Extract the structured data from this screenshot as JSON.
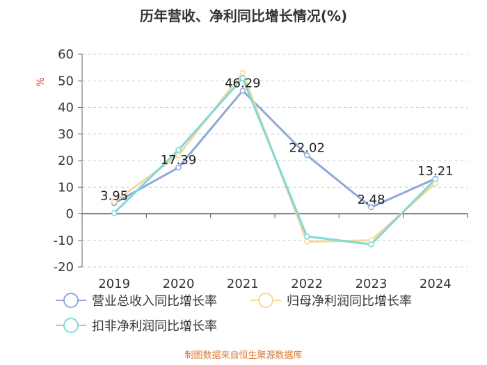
{
  "chart_data": {
    "type": "line",
    "title": "历年营收、净利同比增长情况(%)",
    "ylabel": "%",
    "ylim": [
      -20,
      60
    ],
    "yticks": [
      60,
      50,
      40,
      30,
      20,
      10,
      0,
      -10,
      -20
    ],
    "grid": true,
    "legend_position": "bottom",
    "categories": [
      "2019",
      "2020",
      "2021",
      "2022",
      "2023",
      "2024"
    ],
    "series": [
      {
        "name": "营业总收入同比增长率",
        "color": "#8fa8d8",
        "values": [
          3.95,
          17.39,
          46.29,
          22.02,
          2.48,
          13.21
        ],
        "labeled": true
      },
      {
        "name": "归母净利润同比增长率",
        "color": "#f7d79a",
        "values": [
          4.5,
          22.0,
          53.0,
          -10.5,
          -10.0,
          11.5
        ],
        "labeled": false
      },
      {
        "name": "扣非净利润同比增长率",
        "color": "#7fd8d8",
        "values": [
          0.3,
          24.0,
          51.0,
          -8.5,
          -11.5,
          13.0
        ],
        "labeled": false
      }
    ],
    "data_labels": [
      "3.95",
      "17.39",
      "46.29",
      "22.02",
      "2.48",
      "13.21"
    ]
  },
  "source": "制图数据来自恒生聚源数据库"
}
